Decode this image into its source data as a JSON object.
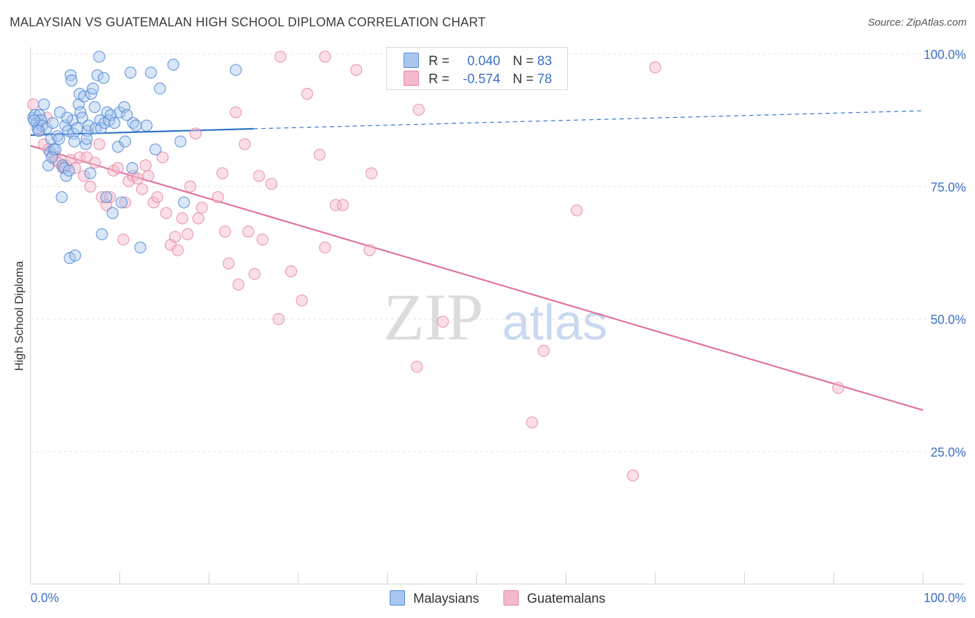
{
  "title": "MALAYSIAN VS GUATEMALAN HIGH SCHOOL DIPLOMA CORRELATION CHART",
  "source": "Source: ZipAtlas.com",
  "watermark": {
    "zip": "ZIP",
    "atlas": "atlas"
  },
  "colors": {
    "blue_fill": "#a9c7ee",
    "blue_stroke": "#4f86d4",
    "blue_line": "#2a72c9",
    "pink_fill": "#f4b9cc",
    "pink_stroke": "#e684a6",
    "pink_line": "#e0719a",
    "tick_label": "#3d6fc6",
    "grid": "#e4e4e4"
  },
  "legend": {
    "r_label": "R =",
    "n_label": "N =",
    "series": [
      {
        "name": "Malaysians",
        "r": "0.040",
        "n": "83"
      },
      {
        "name": "Guatemalans",
        "r": "-0.574",
        "n": "78"
      }
    ]
  },
  "chart_data": {
    "type": "scatter",
    "title": "MALAYSIAN VS GUATEMALAN HIGH SCHOOL DIPLOMA CORRELATION CHART",
    "xlabel": "",
    "ylabel": "High School Diploma",
    "xlim": [
      0,
      100
    ],
    "ylim": [
      0,
      103
    ],
    "x_tick_labels": {
      "left": "0.0%",
      "right": "100.0%"
    },
    "x_ticks": [
      0,
      10,
      20,
      30,
      40,
      50,
      60,
      70,
      80,
      90,
      100
    ],
    "y_ticks": [
      {
        "value": 25,
        "label": "25.0%"
      },
      {
        "value": 50,
        "label": "50.0%"
      },
      {
        "value": 75,
        "label": "75.0%"
      },
      {
        "value": 100,
        "label": "100.0%"
      }
    ],
    "grid": true,
    "legend_position": "top-center",
    "series": [
      {
        "name": "Malaysians",
        "trend": {
          "x0": 0,
          "y0": 84.7,
          "x1": 25,
          "y1": 85.9,
          "dashed_to_x": 100,
          "dashed_to_y": 89.3
        },
        "points": [
          [
            0.3,
            88.0
          ],
          [
            0.5,
            88.5
          ],
          [
            0.7,
            87.0
          ],
          [
            0.8,
            86.0
          ],
          [
            1.0,
            88.5
          ],
          [
            1.2,
            87.5
          ],
          [
            1.3,
            86.5
          ],
          [
            1.5,
            90.5
          ],
          [
            1.8,
            86.0
          ],
          [
            2.0,
            79.0
          ],
          [
            2.2,
            81.5
          ],
          [
            2.3,
            84.0
          ],
          [
            2.5,
            87.0
          ],
          [
            2.6,
            82.0
          ],
          [
            2.8,
            82.0
          ],
          [
            3.0,
            84.5
          ],
          [
            3.2,
            84.0
          ],
          [
            3.3,
            89.0
          ],
          [
            3.5,
            73.0
          ],
          [
            3.6,
            79.0
          ],
          [
            3.8,
            78.5
          ],
          [
            3.9,
            86.5
          ],
          [
            4.0,
            77.0
          ],
          [
            4.2,
            85.5
          ],
          [
            4.3,
            78.0
          ],
          [
            4.4,
            61.5
          ],
          [
            4.5,
            96.0
          ],
          [
            4.6,
            95.0
          ],
          [
            4.7,
            87.5
          ],
          [
            4.8,
            85.0
          ],
          [
            4.9,
            83.5
          ],
          [
            5.0,
            62.0
          ],
          [
            5.2,
            86.0
          ],
          [
            5.4,
            90.5
          ],
          [
            5.5,
            92.5
          ],
          [
            5.6,
            89.0
          ],
          [
            5.8,
            88.0
          ],
          [
            6.0,
            92.0
          ],
          [
            6.2,
            83.0
          ],
          [
            6.4,
            85.5
          ],
          [
            6.5,
            86.5
          ],
          [
            6.7,
            77.5
          ],
          [
            6.8,
            92.5
          ],
          [
            7.0,
            93.5
          ],
          [
            7.2,
            90.0
          ],
          [
            7.3,
            86.0
          ],
          [
            7.5,
            96.0
          ],
          [
            7.7,
            99.5
          ],
          [
            7.8,
            87.5
          ],
          [
            7.9,
            86.0
          ],
          [
            8.0,
            66.0
          ],
          [
            8.2,
            95.5
          ],
          [
            8.3,
            87.0
          ],
          [
            8.5,
            73.0
          ],
          [
            8.6,
            89.0
          ],
          [
            8.8,
            87.5
          ],
          [
            9.0,
            88.5
          ],
          [
            9.2,
            70.0
          ],
          [
            9.4,
            87.0
          ],
          [
            9.8,
            82.5
          ],
          [
            10.0,
            89.0
          ],
          [
            10.2,
            72.0
          ],
          [
            10.5,
            90.0
          ],
          [
            10.6,
            83.5
          ],
          [
            11.2,
            96.5
          ],
          [
            11.4,
            78.5
          ],
          [
            11.5,
            87.0
          ],
          [
            11.8,
            86.5
          ],
          [
            12.3,
            63.5
          ],
          [
            13.0,
            86.5
          ],
          [
            13.5,
            96.5
          ],
          [
            14.0,
            82.0
          ],
          [
            14.5,
            93.5
          ],
          [
            16.0,
            98.0
          ],
          [
            16.8,
            83.5
          ],
          [
            17.2,
            72.0
          ],
          [
            23.0,
            97.0
          ],
          [
            0.4,
            87.5
          ],
          [
            0.9,
            85.5
          ],
          [
            2.4,
            80.5
          ],
          [
            6.3,
            84.0
          ],
          [
            4.1,
            88.0
          ],
          [
            10.8,
            88.5
          ]
        ]
      },
      {
        "name": "Guatemalans",
        "trend": {
          "x0": 0,
          "y0": 82.7,
          "x1": 100,
          "y1": 32.8
        },
        "points": [
          [
            0.3,
            90.5
          ],
          [
            1.0,
            85.5
          ],
          [
            1.5,
            83.0
          ],
          [
            2.0,
            82.0
          ],
          [
            2.5,
            81.0
          ],
          [
            2.8,
            80.0
          ],
          [
            3.2,
            79.5
          ],
          [
            3.6,
            78.5
          ],
          [
            4.0,
            79.0
          ],
          [
            4.5,
            80.0
          ],
          [
            5.0,
            78.5
          ],
          [
            5.5,
            80.5
          ],
          [
            6.0,
            77.0
          ],
          [
            6.3,
            80.5
          ],
          [
            6.7,
            75.0
          ],
          [
            7.2,
            79.5
          ],
          [
            7.7,
            83.0
          ],
          [
            8.0,
            73.0
          ],
          [
            8.5,
            71.5
          ],
          [
            8.9,
            73.0
          ],
          [
            9.3,
            78.0
          ],
          [
            9.8,
            78.5
          ],
          [
            10.4,
            65.0
          ],
          [
            10.6,
            72.0
          ],
          [
            11.0,
            76.0
          ],
          [
            11.5,
            77.0
          ],
          [
            12.0,
            76.5
          ],
          [
            12.5,
            74.5
          ],
          [
            12.9,
            79.0
          ],
          [
            13.2,
            77.0
          ],
          [
            13.8,
            72.0
          ],
          [
            14.2,
            73.0
          ],
          [
            14.8,
            80.5
          ],
          [
            15.2,
            70.0
          ],
          [
            15.7,
            64.0
          ],
          [
            16.2,
            65.5
          ],
          [
            16.5,
            63.0
          ],
          [
            17.0,
            69.0
          ],
          [
            17.6,
            66.0
          ],
          [
            17.9,
            75.0
          ],
          [
            18.5,
            85.0
          ],
          [
            18.8,
            69.0
          ],
          [
            19.2,
            71.0
          ],
          [
            21.0,
            73.0
          ],
          [
            21.5,
            77.5
          ],
          [
            21.8,
            66.5
          ],
          [
            22.2,
            60.5
          ],
          [
            23.0,
            89.0
          ],
          [
            23.3,
            56.5
          ],
          [
            24.0,
            83.0
          ],
          [
            24.4,
            66.5
          ],
          [
            25.1,
            58.5
          ],
          [
            25.6,
            77.0
          ],
          [
            26.0,
            65.0
          ],
          [
            27.0,
            75.5
          ],
          [
            27.8,
            50.0
          ],
          [
            29.2,
            59.0
          ],
          [
            30.4,
            53.5
          ],
          [
            31.0,
            92.5
          ],
          [
            32.4,
            81.0
          ],
          [
            33.0,
            63.5
          ],
          [
            34.2,
            71.5
          ],
          [
            35.0,
            71.5
          ],
          [
            36.5,
            97.0
          ],
          [
            38.2,
            77.5
          ],
          [
            38.0,
            63.0
          ],
          [
            43.5,
            89.5
          ],
          [
            43.3,
            41.0
          ],
          [
            46.2,
            49.5
          ],
          [
            56.2,
            30.5
          ],
          [
            57.5,
            44.0
          ],
          [
            61.2,
            70.5
          ],
          [
            70.0,
            97.5
          ],
          [
            67.5,
            20.5
          ],
          [
            28.0,
            99.5
          ],
          [
            33.0,
            99.5
          ],
          [
            90.5,
            37.0
          ],
          [
            1.8,
            88.0
          ]
        ]
      }
    ]
  }
}
